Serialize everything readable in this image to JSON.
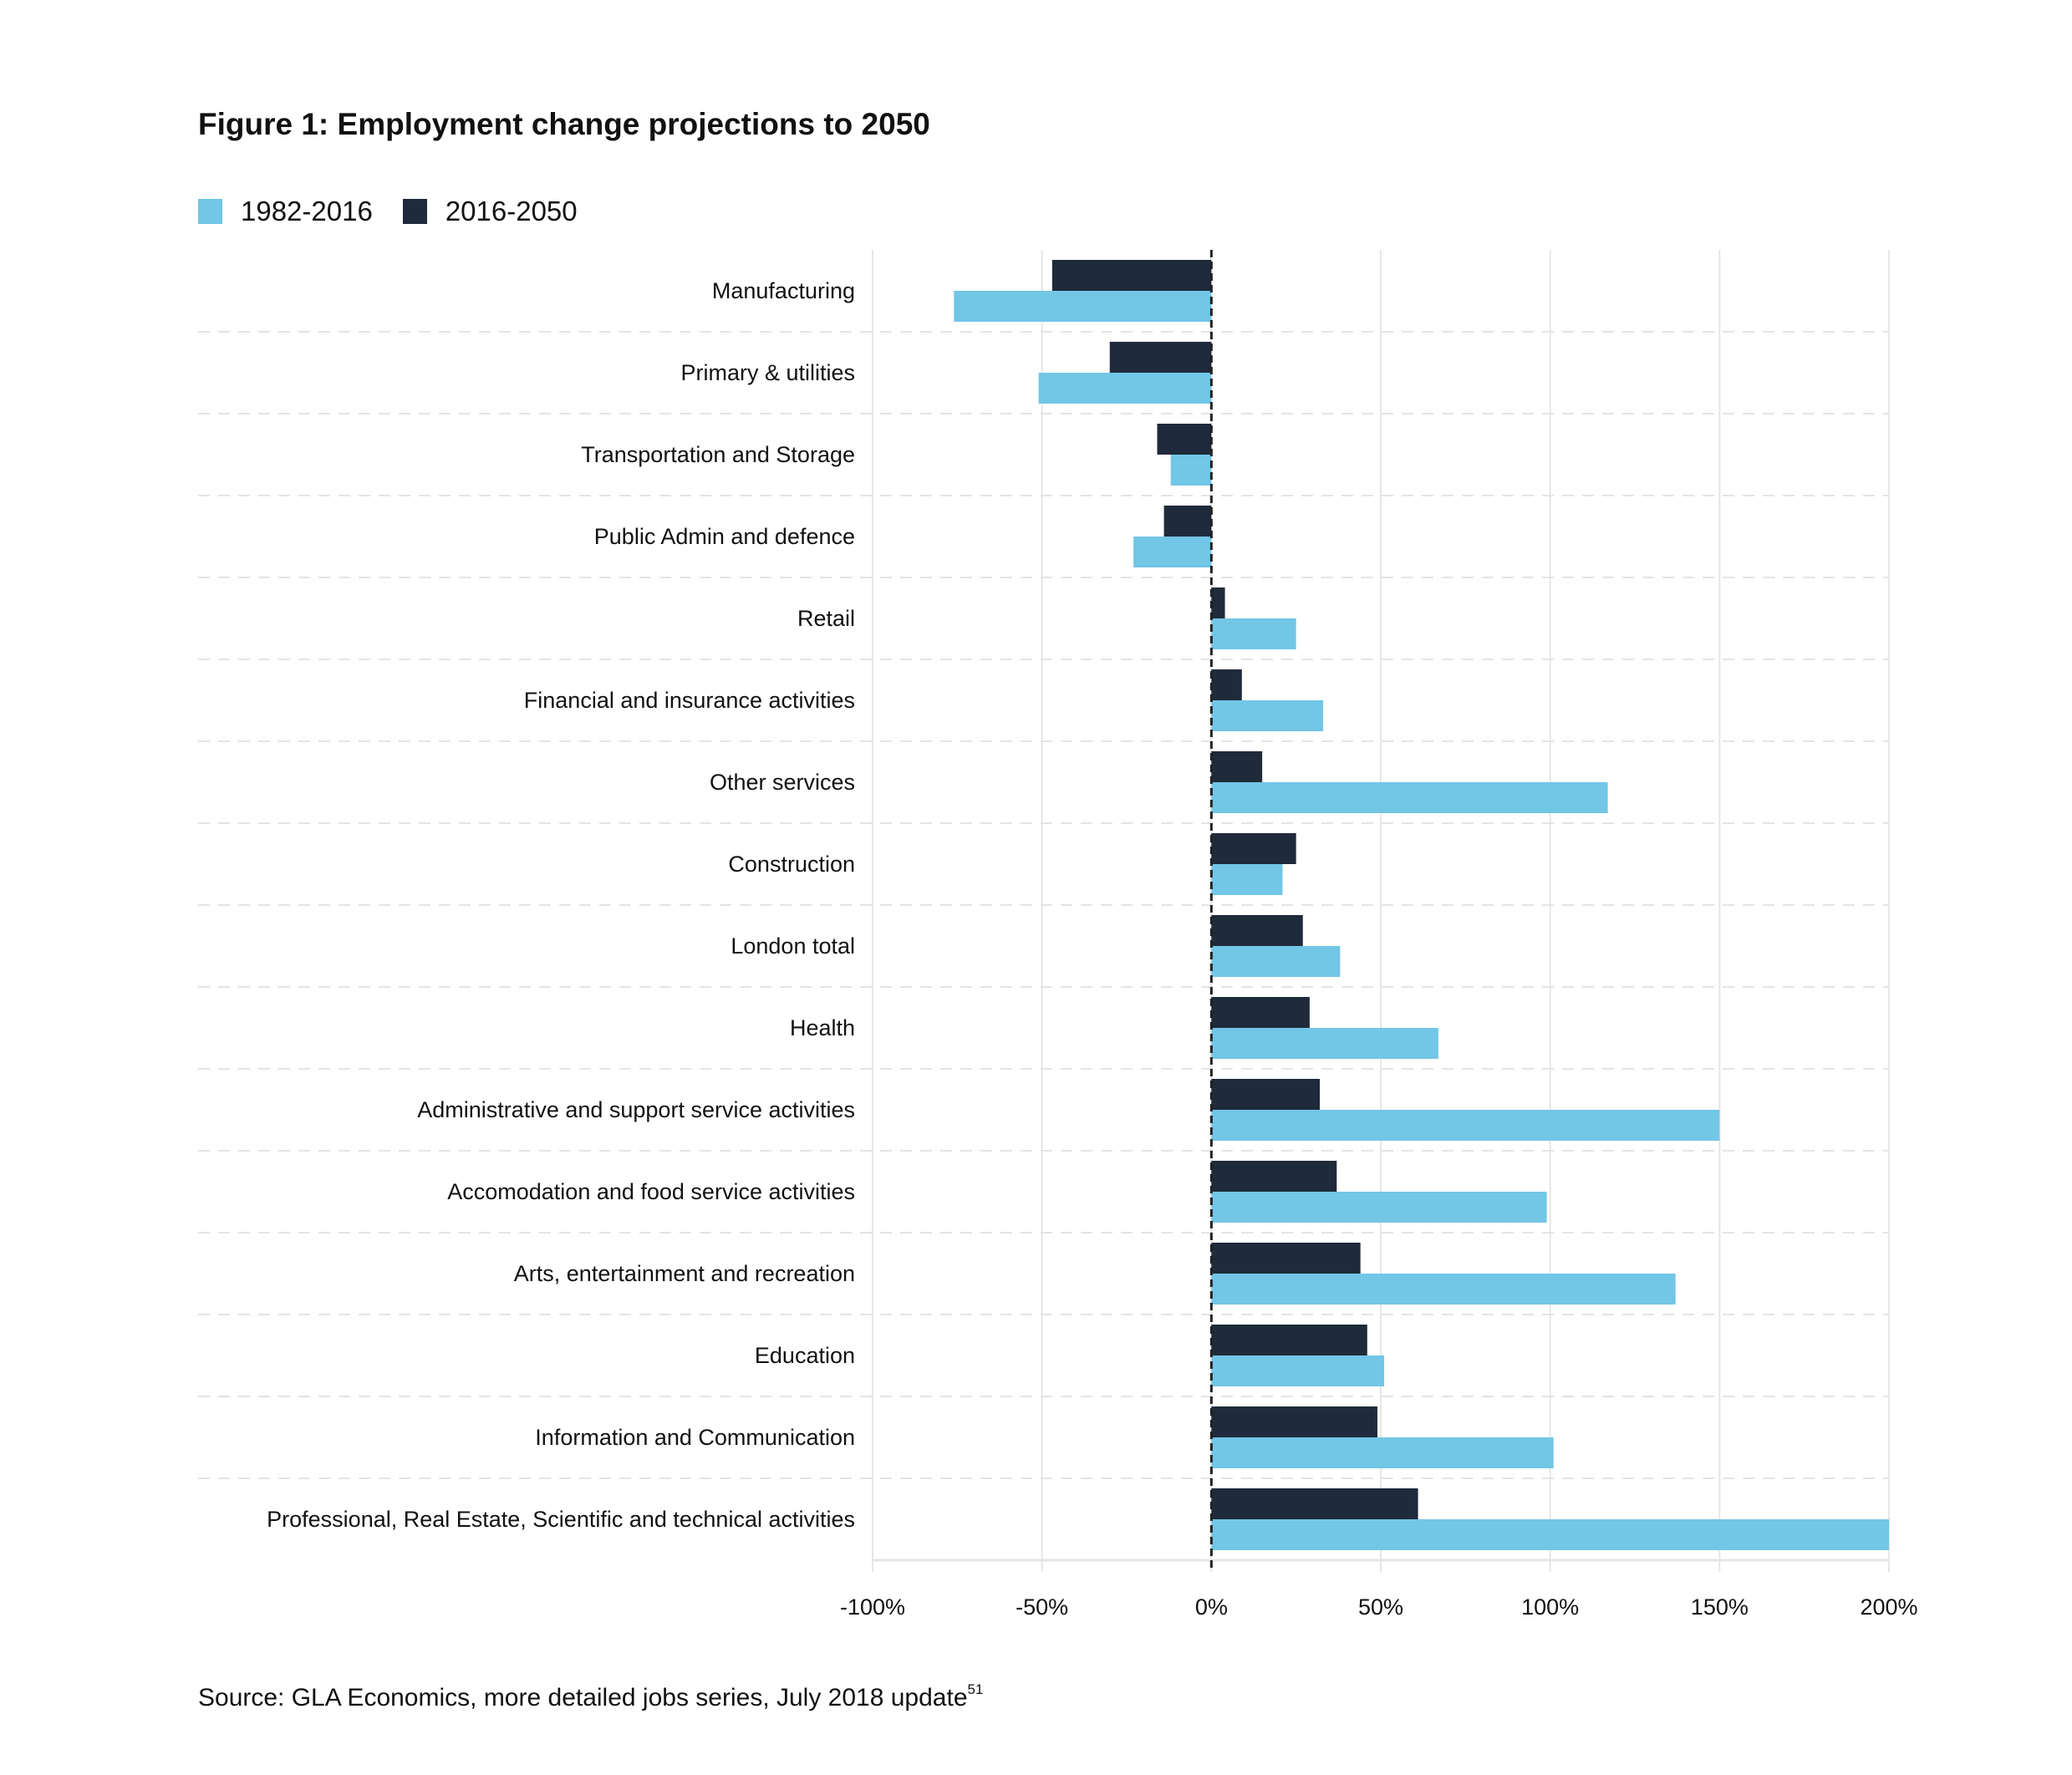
{
  "title": "Figure 1: Employment change projections to 2050",
  "source": {
    "text": "Source: GLA Economics, more detailed jobs series, July 2018 update",
    "footnote": "51"
  },
  "colors": {
    "series_1982_2016": "#72c6e6",
    "series_2016_2050": "#1f2a3a",
    "grid": "#e6e6e6",
    "zero_line": "#222222"
  },
  "legend": [
    {
      "label": "1982-2016",
      "color": "#72c6e6"
    },
    {
      "label": "2016-2050",
      "color": "#1f2a3a"
    }
  ],
  "chart_data": {
    "type": "bar",
    "orientation": "horizontal",
    "title": "Figure 1: Employment change projections to 2050",
    "xlabel": "",
    "ylabel": "",
    "xlim": [
      -100,
      200
    ],
    "x_ticks": [
      -100,
      -50,
      0,
      50,
      100,
      150,
      200
    ],
    "x_tick_labels": [
      "-100%",
      "-50%",
      "0%",
      "50%",
      "100%",
      "150%",
      "200%"
    ],
    "value_unit": "%",
    "grid": true,
    "legend_position": "top-left",
    "categories": [
      "Manufacturing",
      "Primary & utilities",
      "Transportation and Storage",
      "Public Admin and defence",
      "Retail",
      "Financial and insurance activities",
      "Other services",
      "Construction",
      "London total",
      "Health",
      "Administrative and support service activities",
      "Accomodation and food service activities",
      "Arts, entertainment and recreation",
      "Education",
      "Information and Communication",
      "Professional, Real Estate, Scientific and technical activities"
    ],
    "series": [
      {
        "name": "2016-2050",
        "color": "#1f2a3a",
        "values": [
          -47,
          -30,
          -16,
          -14,
          4,
          9,
          15,
          25,
          27,
          29,
          32,
          37,
          44,
          46,
          49,
          61
        ]
      },
      {
        "name": "1982-2016",
        "color": "#72c6e6",
        "values": [
          -76,
          -51,
          -12,
          -23,
          25,
          33,
          117,
          21,
          38,
          67,
          150,
          99,
          137,
          51,
          101,
          200
        ]
      }
    ]
  }
}
